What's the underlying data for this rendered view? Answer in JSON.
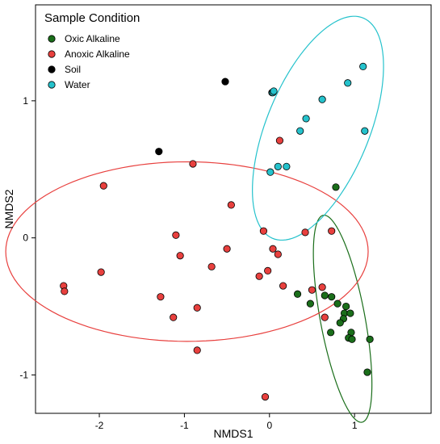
{
  "chart_data": {
    "type": "scatter",
    "title": "",
    "xlabel": "NMDS1",
    "ylabel": "NMDS2",
    "xlim": [
      -2.75,
      1.9
    ],
    "ylim": [
      -1.28,
      1.7
    ],
    "xticks": [
      -2,
      -1,
      0,
      1
    ],
    "yticks": [
      -1,
      0,
      1
    ],
    "xtick_labels": [
      "-2",
      "-1",
      "0",
      "1"
    ],
    "ytick_labels": [
      "-1",
      "0",
      "1"
    ],
    "grid": false,
    "legend": {
      "title": "Sample Condition",
      "placement": "top-left",
      "entries": [
        "Oxic Alkaline",
        "Anoxic Alkaline",
        "Soil",
        "Water"
      ]
    },
    "series": [
      {
        "name": "Oxic Alkaline",
        "color": "#1a6e1a",
        "points": [
          [
            0.78,
            0.37
          ],
          [
            0.33,
            -0.41
          ],
          [
            0.48,
            -0.48
          ],
          [
            0.65,
            -0.42
          ],
          [
            0.73,
            -0.43
          ],
          [
            0.8,
            -0.48
          ],
          [
            0.88,
            -0.55
          ],
          [
            0.95,
            -0.55
          ],
          [
            0.9,
            -0.5
          ],
          [
            0.87,
            -0.59
          ],
          [
            0.72,
            -0.69
          ],
          [
            0.83,
            -0.62
          ],
          [
            0.96,
            -0.69
          ],
          [
            0.93,
            -0.73
          ],
          [
            0.97,
            -0.74
          ],
          [
            1.18,
            -0.74
          ],
          [
            1.15,
            -0.98
          ]
        ],
        "ellipse": {
          "cx": 0.86,
          "cy": -0.59,
          "rx": 0.79,
          "ry": 0.255,
          "angle_deg": -72
        }
      },
      {
        "name": "Anoxic Alkaline",
        "color": "#e8403e",
        "points": [
          [
            -2.42,
            -0.35
          ],
          [
            -2.41,
            -0.39
          ],
          [
            -1.95,
            0.38
          ],
          [
            -1.98,
            -0.25
          ],
          [
            -1.28,
            -0.43
          ],
          [
            -1.13,
            -0.58
          ],
          [
            -1.1,
            0.02
          ],
          [
            -1.05,
            -0.13
          ],
          [
            -0.9,
            0.54
          ],
          [
            -0.85,
            -0.51
          ],
          [
            -0.85,
            -0.82
          ],
          [
            -0.68,
            -0.21
          ],
          [
            -0.5,
            -0.08
          ],
          [
            -0.45,
            0.24
          ],
          [
            -0.12,
            -0.28
          ],
          [
            -0.07,
            0.05
          ],
          [
            -0.02,
            -0.24
          ],
          [
            -0.05,
            -1.16
          ],
          [
            0.04,
            -0.08
          ],
          [
            0.1,
            -0.12
          ],
          [
            0.16,
            -0.35
          ],
          [
            0.42,
            0.04
          ],
          [
            0.5,
            -0.38
          ],
          [
            0.65,
            -0.58
          ],
          [
            0.73,
            0.05
          ],
          [
            0.12,
            0.71
          ],
          [
            0.62,
            -0.36
          ]
        ],
        "ellipse": {
          "cx": -0.97,
          "cy": -0.1,
          "rx": 2.13,
          "ry": 0.655,
          "angle_deg": 0
        }
      },
      {
        "name": "Soil",
        "color": "#000000",
        "points": [
          [
            -1.3,
            0.63
          ],
          [
            -0.52,
            1.14
          ]
        ]
      },
      {
        "name": "Water",
        "color": "#25c2cc",
        "points": [
          [
            0.03,
            1.06
          ],
          [
            0.04,
            1.06
          ],
          [
            0.05,
            1.07
          ],
          [
            0.62,
            1.01
          ],
          [
            0.92,
            1.13
          ],
          [
            1.1,
            1.25
          ],
          [
            1.12,
            0.78
          ],
          [
            0.36,
            0.78
          ],
          [
            0.43,
            0.87
          ],
          [
            0.01,
            0.48
          ],
          [
            0.1,
            0.52
          ],
          [
            0.2,
            0.52
          ]
        ],
        "ellipse": {
          "cx": 0.57,
          "cy": 0.8,
          "rx": 0.99,
          "ry": 0.53,
          "angle_deg": 48
        }
      }
    ]
  }
}
